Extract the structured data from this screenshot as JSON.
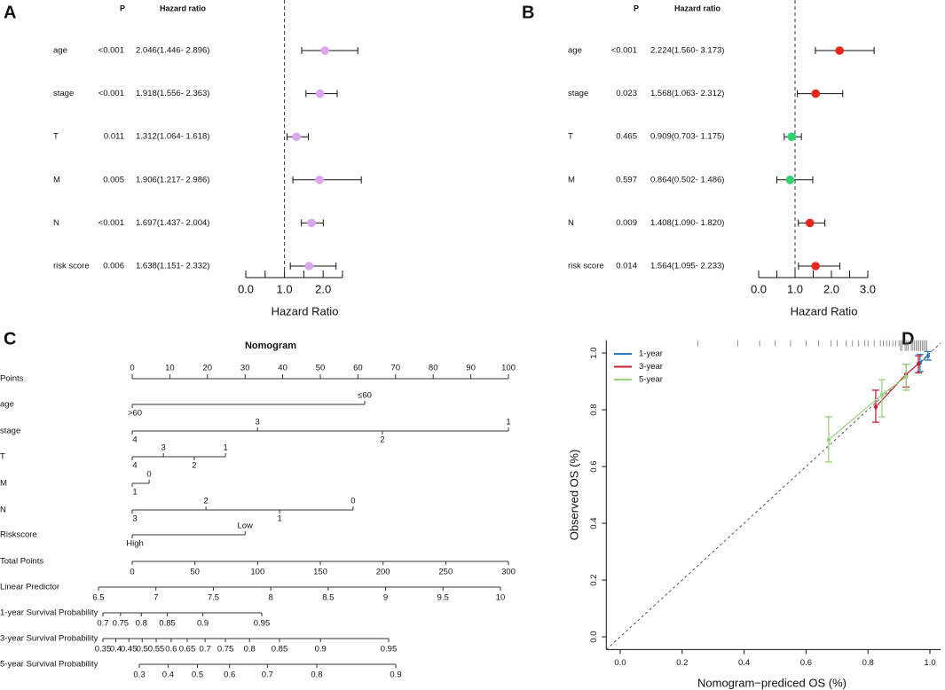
{
  "chart_data": [
    {
      "type": "forest",
      "panel": "A",
      "p_header": "P",
      "hr_header": "Hazard ratio",
      "categories": [
        "age",
        "stage",
        "T",
        "M",
        "N",
        "risk score"
      ],
      "p_values": [
        "<0.001",
        "<0.001",
        "0.011",
        "0.005",
        "<0.001",
        "0.006"
      ],
      "hr_labels": [
        "2.046(1.446- 2.896)",
        "1.918(1.556- 2.363)",
        "1.312(1.064- 1.618)",
        "1.906(1.217- 2.986)",
        "1.697(1.437- 2.004)",
        "1.638(1.151- 2.332)"
      ],
      "values": [
        2.046,
        1.918,
        1.312,
        1.906,
        1.697,
        1.638
      ],
      "lower": [
        1.446,
        1.556,
        1.064,
        1.217,
        1.437,
        1.151
      ],
      "upper": [
        2.896,
        2.363,
        1.618,
        2.986,
        2.004,
        2.332
      ],
      "color": "#dca6ef",
      "xlim": [
        0,
        2.5
      ],
      "xticks": [
        {
          "value": 0,
          "label": "0.0"
        },
        {
          "value": 1,
          "label": "1.0"
        },
        {
          "value": 2,
          "label": "2.0"
        }
      ],
      "xminorticks": [
        0.5,
        1.5,
        2.5
      ],
      "reference": 1,
      "xlabel": "Hazard Ratio"
    },
    {
      "type": "forest",
      "panel": "B",
      "p_header": "P",
      "hr_header": "Hazard ratio",
      "categories": [
        "age",
        "stage",
        "T",
        "M",
        "N",
        "risk score"
      ],
      "p_values": [
        "<0.001",
        "0.023",
        "0.465",
        "0.597",
        "0.009",
        "0.014"
      ],
      "hr_labels": [
        "2.224(1.560- 3.173)",
        "1.568(1.063- 2.312)",
        "0.909(0.703- 1.175)",
        "0.864(0.502- 1.486)",
        "1.408(1.090- 1.820)",
        "1.564(1.095- 2.233)"
      ],
      "values": [
        2.224,
        1.568,
        0.909,
        0.864,
        1.408,
        1.564
      ],
      "lower": [
        1.56,
        1.063,
        0.703,
        0.502,
        1.09,
        1.095
      ],
      "upper": [
        3.173,
        2.312,
        1.175,
        1.486,
        1.82,
        2.233
      ],
      "colors": [
        "#e8261b",
        "#e8261b",
        "#2fd26f",
        "#2fd26f",
        "#e8261b",
        "#e8261b"
      ],
      "xlim": [
        0,
        3
      ],
      "xticks": [
        {
          "value": 0,
          "label": "0.0"
        },
        {
          "value": 1,
          "label": "1.0"
        },
        {
          "value": 2,
          "label": "2.0"
        },
        {
          "value": 3,
          "label": "3.0"
        }
      ],
      "xminorticks": [
        0.5,
        1.5,
        2.5
      ],
      "reference": 1,
      "xlabel": "Hazard Ratio"
    },
    {
      "type": "nomogram",
      "panel": "C",
      "title": "Nomogram",
      "points_axis": {
        "label": "Points",
        "lim": [
          0,
          100
        ],
        "ticks": [
          0,
          10,
          20,
          30,
          40,
          50,
          60,
          70,
          80,
          90,
          100
        ]
      },
      "variables": [
        {
          "name": "age",
          "levels": [
            ">60",
            "≤60"
          ],
          "points": [
            0,
            61.8
          ]
        },
        {
          "name": "stage",
          "levels": [
            "4",
            "3",
            "2",
            "1"
          ],
          "points": [
            0,
            33.3,
            66.5,
            100
          ]
        },
        {
          "name": "T",
          "levels": [
            "4",
            "3",
            "2",
            "1"
          ],
          "points": [
            0,
            8.3,
            16.5,
            24.8
          ]
        },
        {
          "name": "M",
          "levels": [
            "1",
            "0"
          ],
          "points": [
            0,
            4.5
          ]
        },
        {
          "name": "N",
          "levels": [
            "3",
            "2",
            "1",
            "0"
          ],
          "points": [
            0,
            19.6,
            39.2,
            58.7
          ]
        },
        {
          "name": "Riskscore",
          "levels": [
            "High",
            "Low"
          ],
          "points": [
            0,
            30
          ]
        }
      ],
      "total_points": {
        "label": "Total Points",
        "lim": [
          0,
          300
        ],
        "ticks": [
          0,
          50,
          100,
          150,
          200,
          250,
          300
        ]
      },
      "linear_predictor": {
        "label": "Linear Predictor",
        "lim": [
          6.5,
          10
        ],
        "ticks": [
          6.5,
          7,
          7.5,
          8,
          8.5,
          9,
          9.5,
          10
        ]
      },
      "survival": [
        {
          "label": "1-year Survival Probability",
          "scale": "cloglog",
          "ticks": [
            0.7,
            0.75,
            0.8,
            0.85,
            0.9,
            0.95
          ]
        },
        {
          "label": "3-year Survival Probability",
          "scale": "cloglog",
          "ticks": [
            0.35,
            0.4,
            0.45,
            0.5,
            0.55,
            0.6,
            0.65,
            0.7,
            0.75,
            0.8,
            0.85,
            0.9,
            0.95
          ]
        },
        {
          "label": "5-year Survival Probability",
          "scale": "cloglog",
          "ticks": [
            0.3,
            0.4,
            0.5,
            0.6,
            0.7,
            0.8,
            0.9
          ]
        }
      ]
    },
    {
      "type": "calibration",
      "panel": "D",
      "xlabel": "Nomogram−prediced OS (%)",
      "ylabel": "Observed OS (%)",
      "xlim": [
        -0.045,
        1.035
      ],
      "ylim": [
        -0.045,
        1.045
      ],
      "xticks": [
        {
          "value": 0,
          "label": "0.0"
        },
        {
          "value": 0.2,
          "label": "0.2"
        },
        {
          "value": 0.4,
          "label": "0.4"
        },
        {
          "value": 0.6,
          "label": "0.6"
        },
        {
          "value": 0.8,
          "label": "0.8"
        },
        {
          "value": 1,
          "label": "1.0"
        }
      ],
      "yticks": [
        {
          "value": 0,
          "label": "0.0"
        },
        {
          "value": 0.2,
          "label": "0.2"
        },
        {
          "value": 0.4,
          "label": "0.4"
        },
        {
          "value": 0.6,
          "label": "0.6"
        },
        {
          "value": 0.8,
          "label": "0.8"
        },
        {
          "value": 1,
          "label": "1.0"
        }
      ],
      "diagonal": true,
      "legend": "upper left",
      "series": [
        {
          "name": "1-year",
          "color": "#2b7bc4",
          "x": [
            0.968,
            0.994
          ],
          "values": [
            0.965,
            0.99
          ],
          "lower": [
            0.935,
            0.975
          ],
          "upper": [
            0.995,
            1.005
          ]
        },
        {
          "name": "3-year",
          "color": "#c9202f",
          "x": [
            0.825,
            0.923,
            0.963
          ],
          "values": [
            0.81,
            0.925,
            0.962
          ],
          "lower": [
            0.756,
            0.88,
            0.93
          ],
          "upper": [
            0.869,
            0.96,
            0.99
          ]
        },
        {
          "name": "5-year",
          "color": "#93d47c",
          "x": [
            0.673,
            0.845,
            0.923
          ],
          "values": [
            0.694,
            0.853,
            0.916
          ],
          "lower": [
            0.616,
            0.775,
            0.869
          ],
          "upper": [
            0.775,
            0.906,
            0.96
          ]
        }
      ],
      "rug": [
        0.25,
        0.38,
        0.45,
        0.5,
        0.55,
        0.6,
        0.64,
        0.68,
        0.7,
        0.73,
        0.75,
        0.77,
        0.79,
        0.8,
        0.82,
        0.84,
        0.85,
        0.86,
        0.87,
        0.88,
        0.89,
        0.9,
        0.905,
        0.91,
        0.92,
        0.925,
        0.93,
        0.94,
        0.945,
        0.95,
        0.955,
        0.96,
        0.965,
        0.97,
        0.975,
        0.98,
        0.985,
        0.99
      ]
    }
  ]
}
